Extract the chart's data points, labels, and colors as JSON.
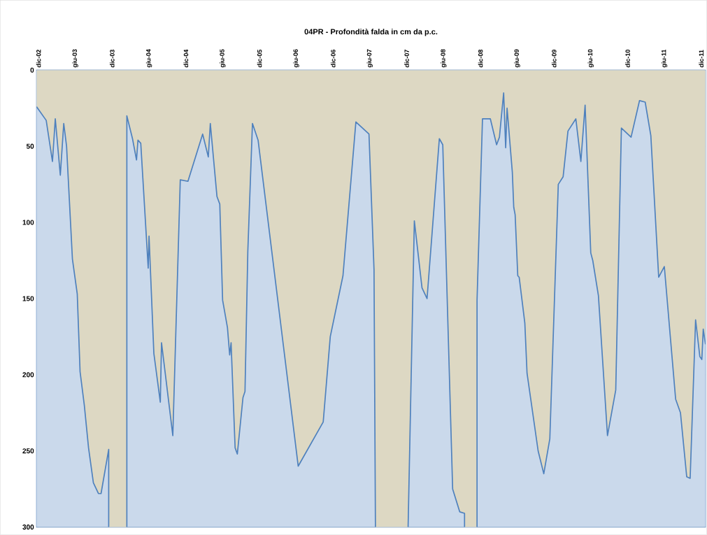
{
  "chart_data": {
    "type": "area",
    "title": "04PR - Profondità falda in cm da p.c.",
    "color": "#4f81bd",
    "grid": "y",
    "xlim": [
      "2002-11-21",
      "2011-12-22"
    ],
    "ylim": [
      300,
      0
    ],
    "yticks": [
      0,
      50,
      100,
      150,
      200,
      250,
      300
    ],
    "xticks": [
      {
        "value": "2002-12-01",
        "label": "dic-02"
      },
      {
        "value": "2003-06-01",
        "label": "giu-03"
      },
      {
        "value": "2003-12-01",
        "label": "dic-03"
      },
      {
        "value": "2004-06-01",
        "label": "giu-04"
      },
      {
        "value": "2004-12-01",
        "label": "dic-04"
      },
      {
        "value": "2005-06-01",
        "label": "giu-05"
      },
      {
        "value": "2005-12-01",
        "label": "dic-05"
      },
      {
        "value": "2006-06-01",
        "label": "giu-06"
      },
      {
        "value": "2006-12-01",
        "label": "dic-06"
      },
      {
        "value": "2007-06-01",
        "label": "giu-07"
      },
      {
        "value": "2007-12-01",
        "label": "dic-07"
      },
      {
        "value": "2008-06-01",
        "label": "giu-08"
      },
      {
        "value": "2008-12-01",
        "label": "dic-08"
      },
      {
        "value": "2009-06-01",
        "label": "giu-09"
      },
      {
        "value": "2009-12-01",
        "label": "dic-09"
      },
      {
        "value": "2010-06-01",
        "label": "giu-10"
      },
      {
        "value": "2010-12-01",
        "label": "dic-10"
      },
      {
        "value": "2011-06-01",
        "label": "giu-11"
      },
      {
        "value": "2011-12-01",
        "label": "dic-11"
      }
    ],
    "x": [
      "2002-11-21",
      "2003-01-08",
      "2003-02-08",
      "2003-02-22",
      "2003-03-19",
      "2003-04-05",
      "2003-04-19",
      "2003-05-18",
      "2003-06-11",
      "2003-06-25",
      "2003-07-16",
      "2003-08-06",
      "2003-08-30",
      "2003-09-24",
      "2003-10-07",
      "2003-11-14",
      "2003-11-14",
      "2003-12-15",
      "2004-02-12",
      "2004-02-12",
      "2004-03-11",
      "2004-03-31",
      "2004-04-07",
      "2004-04-21",
      "2004-05-28",
      "2004-06-01",
      "2004-06-25",
      "2004-07-27",
      "2004-08-02",
      "2004-09-27",
      "2004-11-03",
      "2004-12-11",
      "2005-02-22",
      "2005-03-22",
      "2005-04-01",
      "2005-05-04",
      "2005-05-18",
      "2005-06-01",
      "2005-06-25",
      "2005-07-06",
      "2005-07-13",
      "2005-08-02",
      "2005-08-13",
      "2005-09-10",
      "2005-09-20",
      "2005-10-04",
      "2005-10-27",
      "2005-11-24",
      "2006-06-11",
      "2006-10-13",
      "2006-11-17",
      "2007-01-19",
      "2007-03-24",
      "2007-05-28",
      "2007-06-22",
      "2007-06-29",
      "2007-09-15",
      "2007-12-08",
      "2008-01-08",
      "2008-02-15",
      "2008-03-11",
      "2008-05-11",
      "2008-05-28",
      "2008-07-16",
      "2008-08-20",
      "2008-09-13",
      "2008-09-13",
      "2008-10-15",
      "2008-11-14",
      "2008-11-14",
      "2008-12-11",
      "2009-01-19",
      "2009-02-19",
      "2009-03-05",
      "2009-03-26",
      "2009-04-05",
      "2009-04-12",
      "2009-05-08",
      "2009-05-15",
      "2009-05-22",
      "2009-06-04",
      "2009-06-11",
      "2009-07-09",
      "2009-07-20",
      "2009-09-13",
      "2009-10-11",
      "2009-11-10",
      "2009-12-22",
      "2010-01-15",
      "2010-02-08",
      "2010-03-19",
      "2010-04-13",
      "2010-05-04",
      "2010-06-01",
      "2010-06-11",
      "2010-07-09",
      "2010-08-23",
      "2010-10-03",
      "2010-10-31",
      "2010-12-18",
      "2011-01-29",
      "2011-02-26",
      "2011-03-26",
      "2011-05-04",
      "2011-06-01",
      "2011-07-27",
      "2011-08-20",
      "2011-09-20",
      "2011-10-07",
      "2011-11-03",
      "2011-11-24",
      "2011-12-04",
      "2011-12-11",
      "2011-12-22"
    ],
    "values": [
      24,
      33,
      60,
      32,
      69,
      35,
      50,
      124,
      147,
      198,
      220,
      248,
      271,
      278,
      278,
      249,
      300,
      null,
      300,
      30,
      45,
      59,
      46,
      48,
      130,
      109,
      186,
      218,
      179,
      240,
      72,
      73,
      42,
      57,
      35,
      83,
      88,
      151,
      169,
      187,
      179,
      248,
      252,
      215,
      211,
      119,
      35,
      46,
      260,
      231,
      175,
      135,
      34,
      42,
      131,
      300,
      null,
      300,
      99,
      143,
      150,
      45,
      49,
      275,
      290,
      291,
      300,
      null,
      300,
      151,
      32,
      32,
      49,
      44,
      15,
      51,
      25,
      67,
      90,
      95,
      135,
      136,
      166,
      199,
      250,
      265,
      242,
      75,
      70,
      40,
      32,
      60,
      23,
      120,
      125,
      148,
      240,
      210,
      38,
      44,
      20,
      21,
      43,
      136,
      129,
      216,
      225,
      267,
      268,
      164,
      188,
      190,
      170,
      180
    ]
  }
}
